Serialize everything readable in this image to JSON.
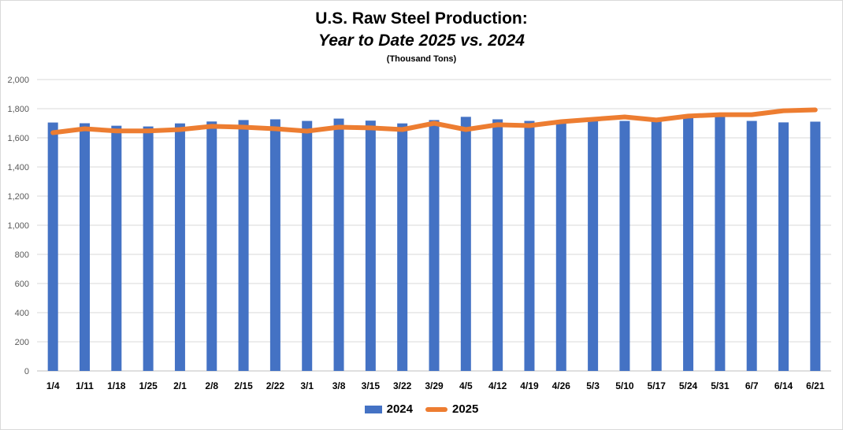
{
  "chart_data": {
    "type": "bar+line",
    "title": "U.S. Raw Steel Production:",
    "subtitle": "Year to Date 2025 vs. 2024",
    "units_note": "(Thousand Tons)",
    "categories": [
      "1/4",
      "1/11",
      "1/18",
      "1/25",
      "2/1",
      "2/8",
      "2/15",
      "2/22",
      "3/1",
      "3/8",
      "3/15",
      "3/22",
      "3/29",
      "4/5",
      "4/12",
      "4/19",
      "4/26",
      "5/3",
      "5/10",
      "5/17",
      "5/24",
      "5/31",
      "6/7",
      "6/14",
      "6/21"
    ],
    "ylim": [
      0,
      2000
    ],
    "yticks": [
      0,
      200,
      400,
      600,
      800,
      1000,
      1200,
      1400,
      1600,
      1800,
      2000
    ],
    "ytick_labels": [
      "0",
      "200",
      "400",
      "600",
      "800",
      "1,000",
      "1,200",
      "1,400",
      "1,600",
      "1,800",
      "2,000"
    ],
    "grid": true,
    "legend_position": "bottom",
    "series": [
      {
        "name": "2024",
        "kind": "bar",
        "color": "#4472c4",
        "values": [
          1705,
          1700,
          1683,
          1678,
          1699,
          1712,
          1722,
          1727,
          1716,
          1732,
          1718,
          1699,
          1722,
          1744,
          1727,
          1716,
          1699,
          1716,
          1716,
          1716,
          1738,
          1749,
          1716,
          1706,
          1711
        ]
      },
      {
        "name": "2025",
        "kind": "line",
        "color": "#ed7d31",
        "values": [
          1635,
          1662,
          1647,
          1647,
          1657,
          1679,
          1673,
          1662,
          1646,
          1673,
          1668,
          1657,
          1700,
          1657,
          1690,
          1684,
          1711,
          1727,
          1743,
          1722,
          1749,
          1759,
          1759,
          1786,
          1792
        ]
      }
    ]
  }
}
